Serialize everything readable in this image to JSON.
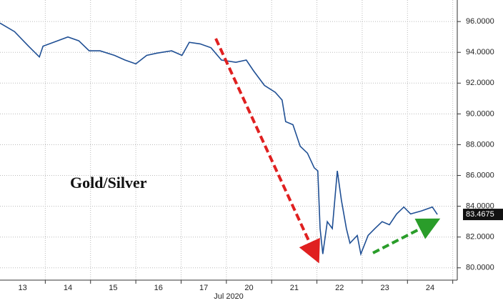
{
  "chart_data": {
    "type": "line",
    "annotation": "Gold/Silver",
    "x_label": "Jul 2020",
    "grid": true,
    "x": [
      0,
      0.32,
      0.63,
      0.87,
      0.95,
      1.18,
      1.5,
      1.74,
      1.97,
      2.21,
      2.53,
      2.76,
      3.0,
      3.24,
      3.47,
      3.79,
      4.02,
      4.18,
      4.42,
      4.66,
      4.89,
      5.21,
      5.44,
      5.6,
      5.84,
      6.08,
      6.23,
      6.31,
      6.47,
      6.63,
      6.79,
      6.94,
      7.02,
      7.07,
      7.13,
      7.23,
      7.34,
      7.45,
      7.54,
      7.65,
      7.73,
      7.89,
      7.97,
      8.13,
      8.28,
      8.44,
      8.6,
      8.76,
      8.92,
      9.07,
      9.31,
      9.55,
      9.66
    ],
    "series": [
      {
        "color": "#1f4f94",
        "values": [
          95.9,
          95.35,
          94.4,
          93.7,
          94.4,
          94.65,
          95.0,
          94.75,
          94.1,
          94.1,
          93.8,
          93.5,
          93.25,
          93.8,
          93.95,
          94.1,
          93.8,
          94.65,
          94.55,
          94.3,
          93.5,
          93.35,
          93.5,
          92.8,
          91.85,
          91.4,
          90.9,
          89.5,
          89.3,
          87.9,
          87.45,
          86.5,
          86.3,
          82.55,
          80.9,
          83.0,
          82.55,
          86.3,
          84.4,
          82.55,
          81.6,
          82.1,
          80.9,
          82.1,
          82.55,
          83.0,
          82.8,
          83.5,
          83.95,
          83.5,
          83.7,
          83.95,
          83.4675
        ]
      }
    ],
    "xlim": [
      0,
      10.1
    ],
    "xticks": [
      {
        "value": 0.5,
        "label": "13"
      },
      {
        "value": 1.5,
        "label": "14"
      },
      {
        "value": 2.5,
        "label": "15"
      },
      {
        "value": 3.5,
        "label": "16"
      },
      {
        "value": 4.5,
        "label": "17"
      },
      {
        "value": 5.5,
        "label": "20"
      },
      {
        "value": 6.5,
        "label": "21"
      },
      {
        "value": 7.5,
        "label": "22"
      },
      {
        "value": 8.5,
        "label": "23"
      },
      {
        "value": 9.5,
        "label": "24"
      }
    ],
    "ylim": [
      79.2,
      97.4
    ],
    "yticks": [
      {
        "value": 80,
        "label": "80.0000"
      },
      {
        "value": 82,
        "label": "82.0000"
      },
      {
        "value": 84,
        "label": "84.0000"
      },
      {
        "value": 86,
        "label": "86.0000"
      },
      {
        "value": 88,
        "label": "88.0000"
      },
      {
        "value": 90,
        "label": "90.0000"
      },
      {
        "value": 92,
        "label": "92.0000"
      },
      {
        "value": 94,
        "label": "94.0000"
      },
      {
        "value": 96,
        "label": "96.0000"
      }
    ]
  }
}
